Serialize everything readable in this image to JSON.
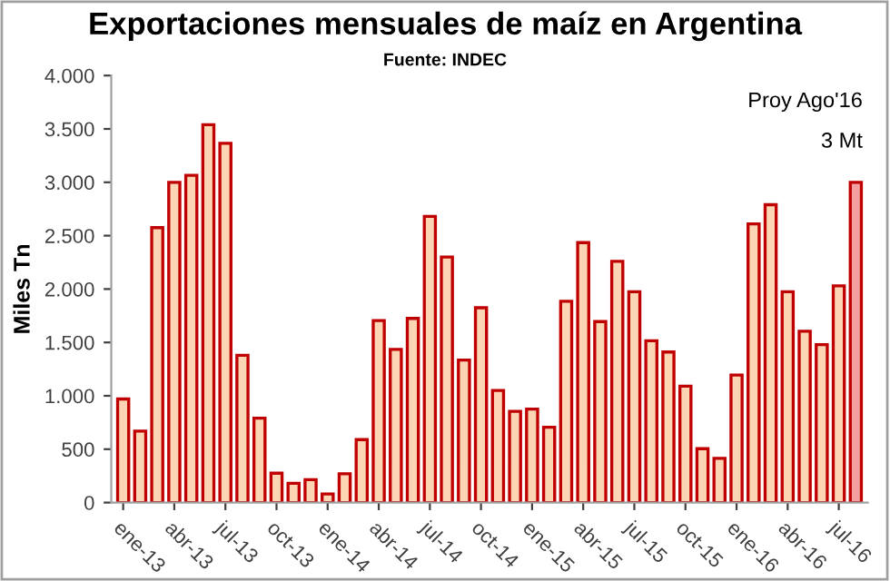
{
  "chart_data": {
    "type": "bar",
    "title": "Exportaciones mensuales de maíz en Argentina",
    "subtitle": "Fuente: INDEC",
    "ylabel": "Miles Tn",
    "categories": [
      "ene-13",
      null,
      null,
      "abr-13",
      null,
      null,
      "jul-13",
      null,
      null,
      "oct-13",
      null,
      null,
      "ene-14",
      null,
      null,
      "abr-14",
      null,
      null,
      "jul-14",
      null,
      null,
      "oct-14",
      null,
      null,
      "ene-15",
      null,
      null,
      "abr-15",
      null,
      null,
      "jul-15",
      null,
      null,
      "oct-15",
      null,
      null,
      "ene-16",
      null,
      null,
      "abr-16",
      null,
      null,
      "jul-16",
      null
    ],
    "values": [
      970,
      670,
      2575,
      3000,
      3065,
      3540,
      3365,
      1380,
      790,
      275,
      180,
      215,
      80,
      270,
      590,
      1705,
      1435,
      1725,
      2680,
      2300,
      1335,
      1825,
      1050,
      855,
      875,
      705,
      1885,
      2435,
      1695,
      2260,
      1975,
      1515,
      1410,
      1090,
      505,
      415,
      1195,
      2610,
      2790,
      1975,
      1605,
      1480,
      2030,
      3000
    ],
    "colors": [
      "#fcd5b4",
      "#fcd5b4",
      "#fcd5b4",
      "#fcd5b4",
      "#fcd5b4",
      "#fcd5b4",
      "#fcd5b4",
      "#fcd5b4",
      "#fcd5b4",
      "#fcd5b4",
      "#fcd5b4",
      "#fcd5b4",
      "#fcd5b4",
      "#fcd5b4",
      "#fcd5b4",
      "#fcd5b4",
      "#fcd5b4",
      "#fcd5b4",
      "#fcd5b4",
      "#fcd5b4",
      "#fcd5b4",
      "#fcd5b4",
      "#fcd5b4",
      "#fcd5b4",
      "#fcd5b4",
      "#fcd5b4",
      "#fcd5b4",
      "#fcd5b4",
      "#fcd5b4",
      "#fcd5b4",
      "#fcd5b4",
      "#fcd5b4",
      "#fcd5b4",
      "#fcd5b4",
      "#fcd5b4",
      "#fcd5b4",
      "#fcd5b4",
      "#fcd5b4",
      "#fcd5b4",
      "#fcd5b4",
      "#fcd5b4",
      "#fcd5b4",
      "#fcd5b4",
      "#f4a0a0"
    ],
    "ylim": [
      0,
      4000
    ],
    "yticks": [
      {
        "value": 0,
        "label": "0"
      },
      {
        "value": 500,
        "label": "500"
      },
      {
        "value": 1000,
        "label": "1.000"
      },
      {
        "value": 1500,
        "label": "1.500"
      },
      {
        "value": 2000,
        "label": "2.000"
      },
      {
        "value": 2500,
        "label": "2.500"
      },
      {
        "value": 3000,
        "label": "3.000"
      },
      {
        "value": 3500,
        "label": "3.500"
      },
      {
        "value": 4000,
        "label": "4.000"
      }
    ],
    "annotations": [
      "Proy Ago'16",
      "3 Mt"
    ],
    "grid": false,
    "legend": false
  }
}
